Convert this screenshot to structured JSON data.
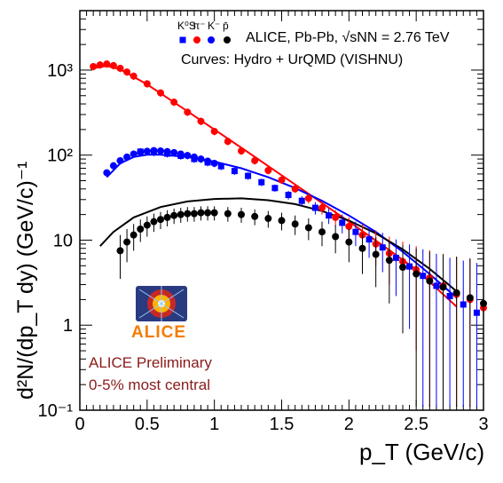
{
  "chart_data": {
    "type": "scatter",
    "title": "",
    "xlabel": "p_T (GeV/c)",
    "ylabel": "d²N/(dp_T dy) (GeV/c)⁻¹",
    "xlim": [
      0,
      3
    ],
    "ylim": [
      0.1,
      5000
    ],
    "yscale": "log",
    "x_ticks": [
      "0",
      "0.5",
      "1",
      "1.5",
      "2",
      "2.5",
      "3"
    ],
    "y_ticks": [
      "10⁻¹",
      "1",
      "10",
      "10²",
      "10³"
    ],
    "legend": {
      "particles": [
        "K⁰S",
        "π⁻",
        "K⁻",
        "p̄"
      ],
      "label": "ALICE, Pb-Pb, √sNN = 2.76 TeV",
      "curves_label": "Curves: Hydro + UrQMD (VISHNU)"
    },
    "annotations": [
      "ALICE Preliminary",
      "0-5% most central"
    ],
    "logo_text": "ALICE",
    "series": [
      {
        "name": "K⁰S",
        "marker": "square",
        "color": "#0000ff",
        "x": [
          0.45,
          0.55,
          0.65,
          0.75,
          0.85,
          0.95,
          1.05,
          1.15,
          1.25,
          1.35,
          1.45,
          1.55,
          1.65,
          1.75,
          1.85,
          1.95,
          2.05,
          2.15,
          2.25,
          2.35,
          2.45,
          2.55,
          2.65,
          2.75,
          2.85,
          2.95
        ],
        "y": [
          110,
          108,
          104,
          98,
          90,
          82,
          74,
          65,
          57,
          48,
          41,
          34,
          29,
          24,
          19.5,
          16,
          12.5,
          10.2,
          8.2,
          6.2,
          4.9,
          3.8,
          2.9,
          2.2,
          1.75,
          1.4
        ]
      },
      {
        "name": "π⁻",
        "marker": "circle",
        "color": "#ff0000",
        "x": [
          0.1,
          0.15,
          0.2,
          0.25,
          0.3,
          0.35,
          0.4,
          0.5,
          0.6,
          0.7,
          0.8,
          0.9,
          1.0,
          1.1,
          1.2,
          1.3,
          1.4,
          1.5,
          1.6,
          1.7,
          1.8,
          1.9,
          2.0,
          2.1,
          2.2,
          2.3,
          2.4,
          2.5,
          2.6,
          2.7,
          2.8,
          2.9,
          3.0
        ],
        "y": [
          1100,
          1150,
          1180,
          1130,
          1050,
          950,
          850,
          690,
          540,
          420,
          320,
          250,
          190,
          145,
          112,
          86,
          66,
          51,
          40,
          31,
          24,
          18.5,
          14.5,
          11.5,
          9,
          7,
          5.6,
          4.5,
          3.6,
          2.9,
          2.3,
          2.0,
          1.6
        ]
      },
      {
        "name": "K⁻",
        "marker": "circle",
        "color": "#0000ff",
        "x": [
          0.2,
          0.25,
          0.3,
          0.35,
          0.4,
          0.45,
          0.5,
          0.55,
          0.6,
          0.65,
          0.7,
          0.75,
          0.8,
          0.85,
          0.9,
          0.95,
          1.0
        ],
        "y": [
          62,
          75,
          86,
          95,
          103,
          108,
          111,
          113,
          112,
          110,
          107,
          103,
          99,
          95,
          90,
          85,
          80
        ]
      },
      {
        "name": "p̄",
        "marker": "circle",
        "color": "#000000",
        "x": [
          0.3,
          0.35,
          0.4,
          0.45,
          0.5,
          0.55,
          0.6,
          0.65,
          0.7,
          0.75,
          0.8,
          0.85,
          0.9,
          0.95,
          1.0,
          1.1,
          1.2,
          1.3,
          1.4,
          1.5,
          1.6,
          1.7,
          1.8,
          1.9,
          2.0,
          2.1,
          2.2,
          2.3,
          2.4,
          2.5,
          2.6,
          2.7,
          2.8,
          2.9,
          3.0
        ],
        "y": [
          7.5,
          9.5,
          11.5,
          13.5,
          15,
          16.5,
          17.5,
          18.5,
          19.5,
          20,
          20.5,
          20.5,
          21,
          21,
          21,
          20.5,
          20,
          19,
          18,
          17,
          15.5,
          14,
          12.5,
          11,
          9.5,
          8,
          6.8,
          5.8,
          4.8,
          4,
          3.3,
          2.8,
          2.4,
          2.1,
          1.8
        ]
      }
    ],
    "curves": [
      {
        "name": "π⁻ hydro",
        "color": "#ff0000",
        "x": [
          0.1,
          0.2,
          0.3,
          0.5,
          0.75,
          1.0,
          1.25,
          1.5,
          1.75,
          2.0,
          2.25,
          2.5,
          2.8
        ],
        "y": [
          1050,
          1120,
          1020,
          680,
          370,
          200,
          108,
          58,
          31,
          16.5,
          8.7,
          4.5,
          1.65
        ]
      },
      {
        "name": "K⁻ hydro",
        "color": "#0000ff",
        "x": [
          0.2,
          0.3,
          0.4,
          0.5,
          0.6,
          0.8,
          1.0,
          1.2,
          1.4,
          1.6,
          1.8,
          2.0,
          2.2,
          2.4,
          2.6,
          2.8
        ],
        "y": [
          55,
          80,
          95,
          101,
          101,
          95,
          84,
          70,
          55,
          41,
          29,
          19.5,
          12.5,
          7.3,
          4.0,
          2.1
        ]
      },
      {
        "name": "p̄ hydro",
        "color": "#000000",
        "x": [
          0.15,
          0.25,
          0.4,
          0.6,
          0.8,
          1.0,
          1.2,
          1.4,
          1.6,
          1.8,
          2.0,
          2.2,
          2.4,
          2.6,
          2.8
        ],
        "y": [
          8.5,
          12.5,
          18.5,
          24.5,
          28.5,
          30.5,
          31,
          29.5,
          26.5,
          22,
          17,
          12,
          7.8,
          4.6,
          2.5
        ]
      }
    ]
  }
}
